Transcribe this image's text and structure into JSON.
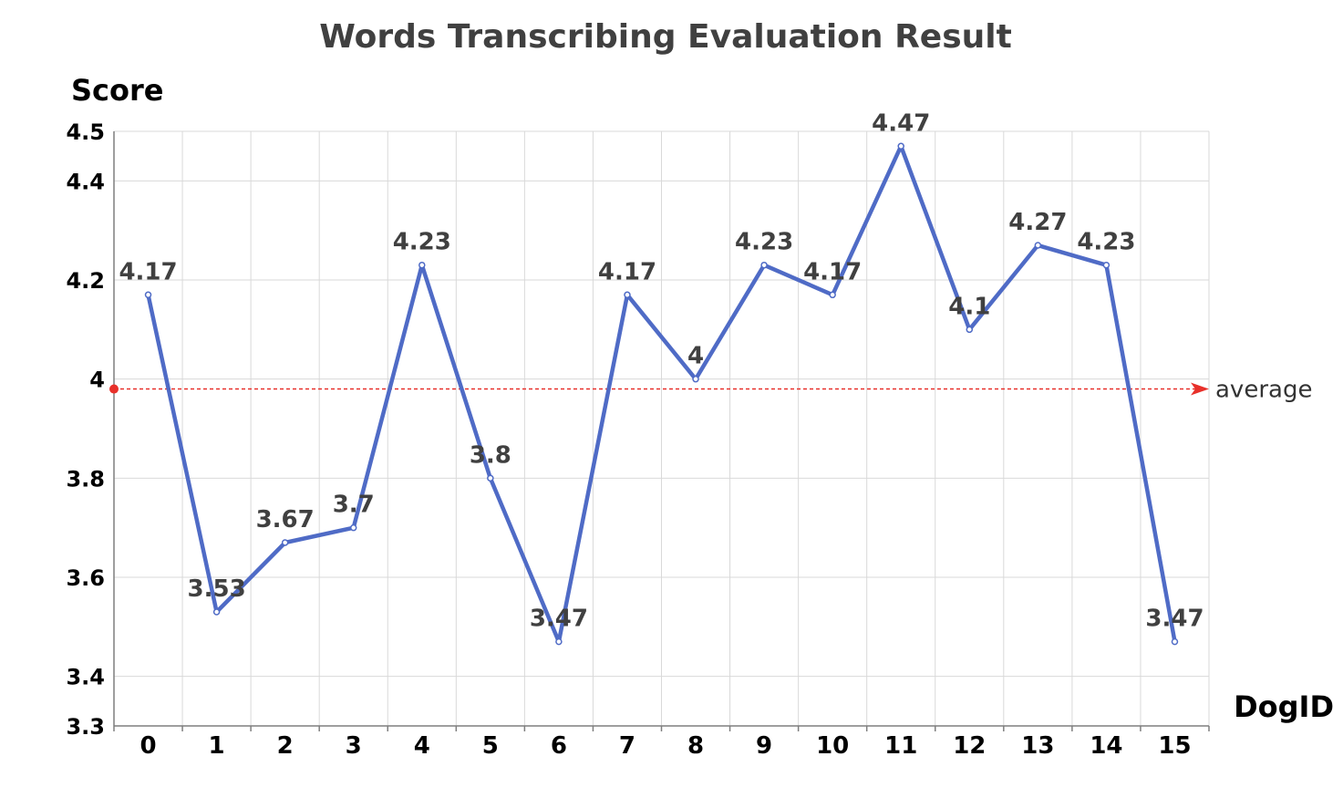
{
  "chart_data": {
    "type": "line",
    "title": "Words Transcribing Evaluation Result",
    "xlabel": "DogID",
    "ylabel": "Score",
    "categories": [
      "0",
      "1",
      "2",
      "3",
      "4",
      "5",
      "6",
      "7",
      "8",
      "9",
      "10",
      "11",
      "12",
      "13",
      "14",
      "15"
    ],
    "series": [
      {
        "values": [
          4.17,
          3.53,
          3.67,
          3.7,
          4.23,
          3.8,
          3.47,
          4.17,
          4,
          4.23,
          4.17,
          4.47,
          4.1,
          4.27,
          4.23,
          3.47
        ],
        "data_labels": [
          "4.17",
          "3.53",
          "3.67",
          "3.7",
          "4.23",
          "3.8",
          "3.47",
          "4.17",
          "4",
          "4.23",
          "4.17",
          "4.47",
          "4.1",
          "4.27",
          "4.23",
          "3.47"
        ]
      }
    ],
    "y_ticks": [
      3.3,
      3.4,
      3.6,
      3.8,
      4,
      4.2,
      4.4,
      4.5
    ],
    "y_tick_labels": [
      "3.3",
      "3.4",
      "3.6",
      "3.8",
      "4",
      "4.2",
      "4.4",
      "4.5"
    ],
    "ylim": [
      3.3,
      4.5
    ],
    "grid": true,
    "reference_line": {
      "label": "average",
      "value": 3.98
    },
    "colors": {
      "line": "#4F6BC6",
      "reference": "#E8302A",
      "grid": "#D9D9D9",
      "axis": "#7F7F7F"
    }
  }
}
